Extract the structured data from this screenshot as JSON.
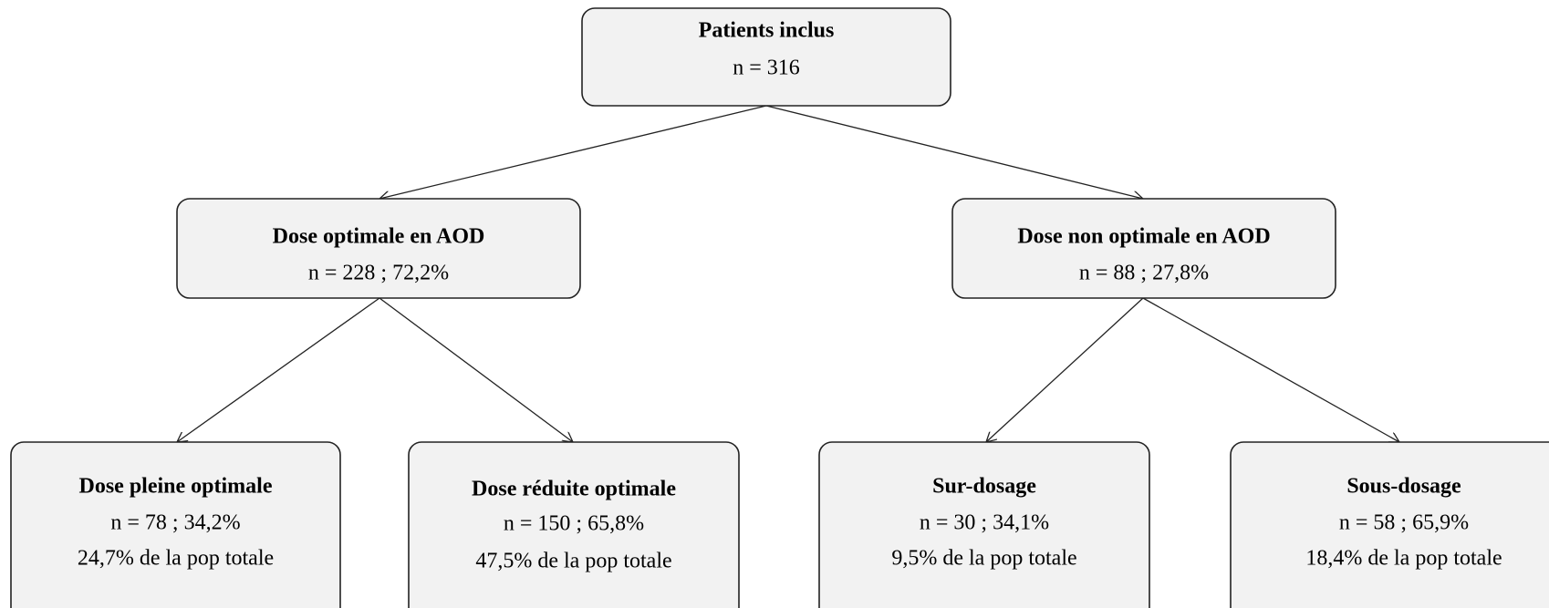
{
  "nodes": [
    {
      "title": "Patients inclus",
      "lines": [
        "n = 316"
      ]
    },
    {
      "title": "Dose optimale  en AOD",
      "lines": [
        "n = 228 ; 72,2%"
      ]
    },
    {
      "title": "Dose non  optimale  en AOD",
      "lines": [
        "n = 88 ; 27,8%"
      ]
    },
    {
      "title": "Dose pleine optimale",
      "lines": [
        "n = 78 ; 34,2%",
        "24,7% de la pop totale"
      ]
    },
    {
      "title": "Dose réduite  optimale",
      "lines": [
        "n = 150 ; 65,8%",
        "47,5% de la pop totale"
      ]
    },
    {
      "title": "Sur-dosage",
      "lines": [
        "n = 30 ; 34,1%",
        "9,5% de la pop totale"
      ]
    },
    {
      "title": "Sous-dosage",
      "lines": [
        "n = 58 ; 65,9%",
        "18,4% de la pop totale"
      ]
    }
  ]
}
